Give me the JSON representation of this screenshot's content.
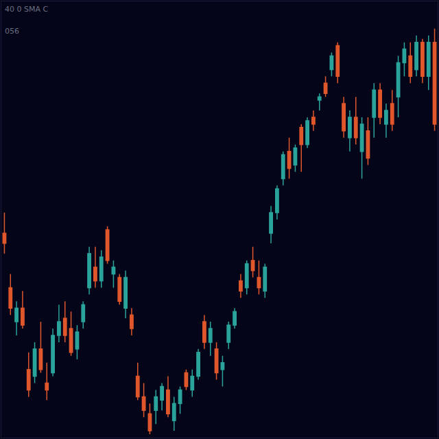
{
  "chart_data": {
    "type": "candlestick",
    "annotations": [
      "40 0 SMA C",
      "056"
    ],
    "x": [
      1,
      2,
      3,
      4,
      5,
      6,
      7,
      8,
      9,
      10,
      11,
      12,
      13,
      14,
      15,
      16,
      17,
      18,
      19,
      20,
      21,
      22,
      23,
      24,
      25,
      26,
      27,
      28,
      29,
      30,
      31,
      32,
      33,
      34,
      35,
      36,
      37,
      38,
      39,
      40,
      41,
      42,
      43,
      44,
      45,
      46,
      47,
      48,
      49,
      50,
      51,
      52,
      53,
      54,
      55,
      56,
      57,
      58,
      59,
      60,
      61,
      62,
      63,
      64,
      65,
      66,
      67,
      68,
      69,
      70,
      71,
      72
    ],
    "open": [
      300,
      220,
      170,
      190,
      100,
      90,
      130,
      80,
      95,
      150,
      175,
      160,
      130,
      170,
      220,
      250,
      230,
      305,
      240,
      235,
      190,
      180,
      90,
      60,
      35,
      40,
      55,
      70,
      25,
      50,
      95,
      70,
      90,
      170,
      140,
      130,
      100,
      140,
      165,
      230,
      220,
      260,
      235,
      215,
      300,
      330,
      380,
      420,
      400,
      455,
      430,
      470,
      495,
      520,
      540,
      575,
      490,
      440,
      470,
      420,
      450,
      470,
      510,
      460,
      490,
      500,
      550,
      560,
      540,
      580,
      530,
      580
    ],
    "high": [
      330,
      240,
      200,
      215,
      125,
      140,
      170,
      110,
      160,
      195,
      200,
      185,
      165,
      200,
      280,
      280,
      275,
      310,
      260,
      240,
      245,
      190,
      110,
      80,
      50,
      70,
      80,
      90,
      60,
      75,
      100,
      100,
      130,
      180,
      170,
      140,
      120,
      170,
      190,
      240,
      260,
      280,
      260,
      255,
      340,
      370,
      420,
      440,
      430,
      460,
      470,
      480,
      505,
      530,
      565,
      580,
      500,
      480,
      500,
      470,
      470,
      520,
      520,
      490,
      510,
      560,
      580,
      580,
      590,
      585,
      590,
      600
    ],
    "low": [
      270,
      180,
      150,
      160,
      60,
      80,
      95,
      55,
      90,
      140,
      140,
      120,
      115,
      160,
      210,
      220,
      220,
      255,
      220,
      195,
      175,
      150,
      55,
      30,
      5,
      20,
      40,
      30,
      10,
      35,
      70,
      60,
      85,
      130,
      120,
      85,
      75,
      130,
      160,
      205,
      210,
      235,
      210,
      205,
      285,
      320,
      370,
      380,
      390,
      390,
      425,
      450,
      480,
      500,
      530,
      520,
      440,
      420,
      430,
      380,
      400,
      440,
      460,
      440,
      450,
      470,
      530,
      520,
      530,
      520,
      510,
      450
    ],
    "close": [
      285,
      190,
      190,
      165,
      70,
      130,
      100,
      70,
      150,
      170,
      150,
      125,
      155,
      195,
      270,
      230,
      265,
      260,
      250,
      200,
      235,
      160,
      60,
      40,
      10,
      60,
      75,
      35,
      50,
      70,
      75,
      90,
      125,
      140,
      160,
      95,
      110,
      165,
      185,
      215,
      255,
      245,
      220,
      250,
      330,
      365,
      415,
      395,
      425,
      430,
      465,
      460,
      500,
      505,
      560,
      530,
      450,
      470,
      440,
      460,
      410,
      510,
      470,
      480,
      460,
      550,
      570,
      530,
      580,
      530,
      580,
      460
    ],
    "color": {
      "up": "#2aa39b",
      "down": "#e0572b"
    },
    "xlim": [
      0.5,
      72.5
    ],
    "ylim": [
      0,
      640
    ],
    "tick_labels": false,
    "grid": false
  }
}
